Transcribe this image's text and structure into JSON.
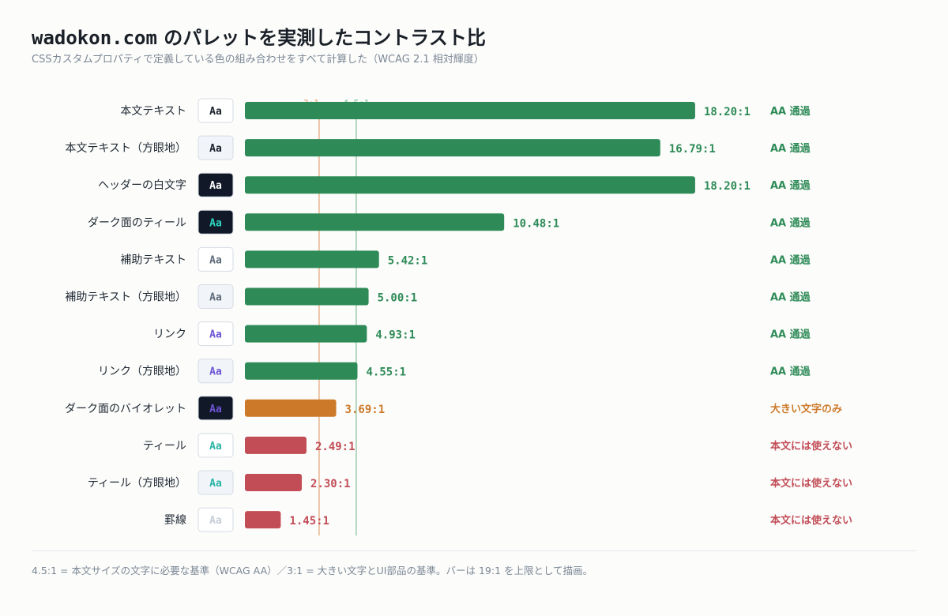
{
  "header": {
    "title_mono": "wadokon.com",
    "title_rest": " のパレットを実測したコントラスト比",
    "subtitle": "CSSカスタムプロパティで定義している色の組み合わせをすべて計算した（WCAG 2.1 相対輝度）"
  },
  "footnote": "4.5:1 = 本文サイズの文字に必要な基準（WCAG AA）／3:1 = 大きい文字とUI部品の基準。バーは 19:1 を上限として描画。",
  "colors": {
    "pass": "#2e8b57",
    "large_only": "#cc7a29",
    "fail": "#c24d57",
    "threshold_aa": "#9cc9ad",
    "threshold_large": "#e9b48e"
  },
  "chart_data": {
    "type": "bar",
    "orientation": "horizontal",
    "xlim": [
      0,
      19
    ],
    "thresholds": [
      {
        "value": 3.0,
        "label": "3:1",
        "color": "#e9b48e"
      },
      {
        "value": 4.5,
        "label": "4.5:1",
        "color": "#9cc9ad"
      }
    ],
    "sample_text": "Aa",
    "rows": [
      {
        "label": "本文テキスト",
        "value": 18.2,
        "value_label": "18.20:1",
        "verdict": "AA 通過",
        "status": "pass",
        "sample_fg": "#1a202c",
        "sample_bg": "#ffffff"
      },
      {
        "label": "本文テキスト（方眼地）",
        "value": 16.79,
        "value_label": "16.79:1",
        "verdict": "AA 通過",
        "status": "pass",
        "sample_fg": "#1a202c",
        "sample_bg": "#f1f5fa"
      },
      {
        "label": "ヘッダーの白文字",
        "value": 18.2,
        "value_label": "18.20:1",
        "verdict": "AA 通過",
        "status": "pass",
        "sample_fg": "#ffffff",
        "sample_bg": "#111827"
      },
      {
        "label": "ダーク面のティール",
        "value": 10.48,
        "value_label": "10.48:1",
        "verdict": "AA 通過",
        "status": "pass",
        "sample_fg": "#2dd4bf",
        "sample_bg": "#111827"
      },
      {
        "label": "補助テキスト",
        "value": 5.42,
        "value_label": "5.42:1",
        "verdict": "AA 通過",
        "status": "pass",
        "sample_fg": "#5f6b7a",
        "sample_bg": "#ffffff"
      },
      {
        "label": "補助テキスト（方眼地）",
        "value": 5.0,
        "value_label": "5.00:1",
        "verdict": "AA 通過",
        "status": "pass",
        "sample_fg": "#5f6b7a",
        "sample_bg": "#f1f5fa"
      },
      {
        "label": "リンク",
        "value": 4.93,
        "value_label": "4.93:1",
        "verdict": "AA 通過",
        "status": "pass",
        "sample_fg": "#6d55d4",
        "sample_bg": "#ffffff"
      },
      {
        "label": "リンク（方眼地）",
        "value": 4.55,
        "value_label": "4.55:1",
        "verdict": "AA 通過",
        "status": "pass",
        "sample_fg": "#6d55d4",
        "sample_bg": "#f1f5fa"
      },
      {
        "label": "ダーク面のバイオレット",
        "value": 3.69,
        "value_label": "3.69:1",
        "verdict": "大きい文字のみ",
        "status": "large_only",
        "sample_fg": "#6d55d4",
        "sample_bg": "#111827"
      },
      {
        "label": "ティール",
        "value": 2.49,
        "value_label": "2.49:1",
        "verdict": "本文には使えない",
        "status": "fail",
        "sample_fg": "#2ab3a6",
        "sample_bg": "#ffffff"
      },
      {
        "label": "ティール（方眼地）",
        "value": 2.3,
        "value_label": "2.30:1",
        "verdict": "本文には使えない",
        "status": "fail",
        "sample_fg": "#2ab3a6",
        "sample_bg": "#f1f5fa"
      },
      {
        "label": "罫線",
        "value": 1.45,
        "value_label": "1.45:1",
        "verdict": "本文には使えない",
        "status": "fail",
        "sample_fg": "#c7ced8",
        "sample_bg": "#ffffff"
      }
    ]
  }
}
